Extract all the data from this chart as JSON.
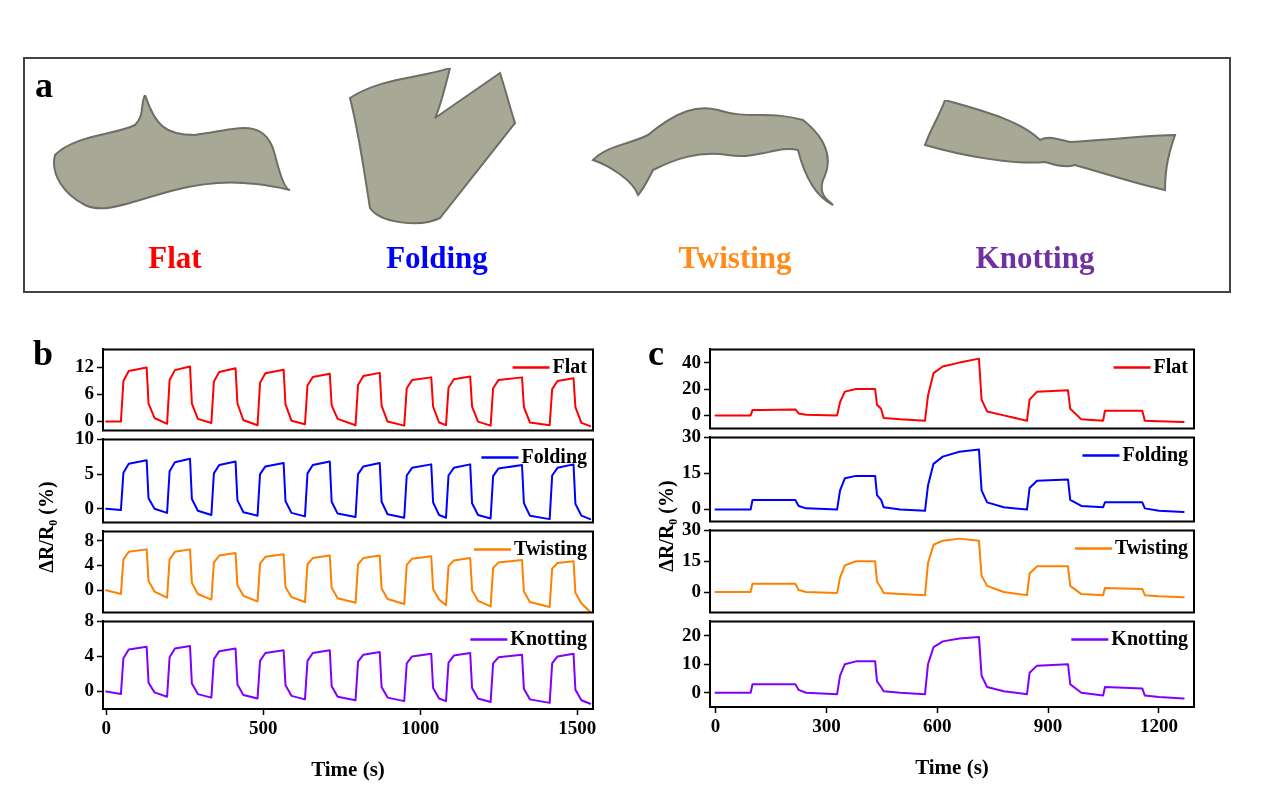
{
  "chart_data": [
    {
      "type": "other",
      "title": "a",
      "annotations": [
        "Flat",
        "Folding",
        "Twisting",
        "Knotting"
      ],
      "colors": [
        "#ff0000",
        "#0000ff",
        "#ff8c1a",
        "#7030a0"
      ]
    },
    {
      "type": "line",
      "title": "b",
      "ylabel": "ΔR/R₀ (%)",
      "legend": "top right",
      "tick_labels": "y",
      "xlim": [
        -10,
        1550
      ],
      "ylim": [
        -2,
        16
      ],
      "yticks": [
        0,
        6,
        12
      ],
      "x": [
        0,
        47,
        55,
        72,
        129,
        135,
        154,
        194,
        202,
        219,
        267,
        273,
        292,
        335,
        343,
        360,
        412,
        418,
        437,
        482,
        490,
        507,
        565,
        571,
        590,
        633,
        641,
        658,
        712,
        718,
        737,
        794,
        802,
        819,
        871,
        877,
        896,
        949,
        957,
        974,
        1035,
        1041,
        1060,
        1082,
        1090,
        1107,
        1159,
        1165,
        1184,
        1224,
        1232,
        1249,
        1324,
        1330,
        1349,
        1412,
        1420,
        1437,
        1488,
        1494,
        1513,
        1541
      ],
      "series": [
        {
          "name": "Flat",
          "color": "#ff0000",
          "values": [
            0,
            0,
            9,
            11.2,
            12,
            4,
            0.8,
            -0.5,
            9.2,
            11.4,
            12.2,
            4,
            0.6,
            -0.3,
            8.9,
            11,
            11.8,
            4,
            0.3,
            -0.8,
            8.6,
            10.7,
            11.5,
            3.8,
            0.2,
            -0.6,
            8,
            9.9,
            10.6,
            3.6,
            0.6,
            -0.8,
            8.1,
            10.1,
            10.8,
            3.5,
            0,
            -0.9,
            7.4,
            9.2,
            9.8,
            3.3,
            -0.2,
            -0.8,
            7.5,
            9.4,
            10,
            3.3,
            0,
            -0.9,
            7.4,
            9.2,
            9.8,
            3.2,
            -0.2,
            -0.8,
            7.2,
            9,
            9.6,
            3.2,
            -0.3,
            -1
          ]
        }
      ]
    },
    {
      "type": "line",
      "legend": "top right",
      "tick_labels": "y",
      "xlim": [
        -10,
        1550
      ],
      "ylim": [
        -2,
        10
      ],
      "yticks": [
        0,
        5,
        10
      ],
      "x": [
        0,
        47,
        55,
        72,
        129,
        135,
        154,
        194,
        202,
        219,
        267,
        273,
        292,
        335,
        343,
        360,
        412,
        418,
        437,
        482,
        490,
        507,
        565,
        571,
        590,
        633,
        641,
        658,
        712,
        718,
        737,
        794,
        802,
        819,
        871,
        877,
        896,
        949,
        957,
        974,
        1035,
        1041,
        1060,
        1082,
        1090,
        1107,
        1159,
        1165,
        1184,
        1224,
        1232,
        1249,
        1324,
        1330,
        1349,
        1412,
        1420,
        1437,
        1488,
        1494,
        1513,
        1541
      ],
      "series": [
        {
          "name": "Folding",
          "color": "#0000ff",
          "values": [
            0,
            -0.2,
            5.2,
            6.5,
            7,
            1.5,
            0,
            -0.6,
            5.4,
            6.7,
            7.2,
            1.4,
            -0.3,
            -0.9,
            5.1,
            6.3,
            6.8,
            1.2,
            -0.5,
            -1,
            5,
            6.1,
            6.6,
            1.1,
            -0.6,
            -1.1,
            5.1,
            6.3,
            6.8,
            1,
            -0.7,
            -1.2,
            5,
            6.1,
            6.6,
            1,
            -0.8,
            -1.3,
            4.8,
            5.9,
            6.4,
            0.9,
            -0.9,
            -1.3,
            4.8,
            5.9,
            6.4,
            0.8,
            -0.9,
            -1.4,
            4.7,
            5.8,
            6.3,
            0.8,
            -1,
            -1.5,
            4.8,
            5.9,
            6.4,
            0.7,
            -1,
            -1.5
          ]
        }
      ]
    },
    {
      "type": "line",
      "legend": "top right",
      "tick_labels": "y",
      "xlim": [
        -10,
        1550
      ],
      "ylim": [
        -3.6,
        9.5
      ],
      "yticks": [
        0,
        4,
        8
      ],
      "x": [
        0,
        47,
        55,
        72,
        129,
        135,
        154,
        194,
        202,
        219,
        267,
        273,
        292,
        335,
        343,
        360,
        412,
        418,
        437,
        482,
        490,
        507,
        565,
        571,
        590,
        633,
        641,
        658,
        712,
        718,
        737,
        794,
        802,
        819,
        871,
        877,
        896,
        949,
        957,
        974,
        1035,
        1041,
        1060,
        1082,
        1090,
        1107,
        1159,
        1165,
        1184,
        1224,
        1232,
        1249,
        1324,
        1330,
        1349,
        1412,
        1420,
        1437,
        1488,
        1494,
        1513,
        1541
      ],
      "series": [
        {
          "name": "Twisting",
          "color": "#ff8000",
          "values": [
            0,
            -0.6,
            5,
            6.2,
            6.6,
            1.5,
            -0.2,
            -1.2,
            5,
            6.2,
            6.6,
            1.2,
            -0.6,
            -1.5,
            4.5,
            5.6,
            6,
            0.8,
            -0.9,
            -1.8,
            4.3,
            5.4,
            5.8,
            0.5,
            -1.1,
            -1.9,
            4.2,
            5.2,
            5.6,
            0.4,
            -1.3,
            -2,
            4.2,
            5.2,
            5.6,
            0.3,
            -1.4,
            -2.2,
            4.1,
            5.1,
            5.5,
            0.2,
            -1.5,
            -2.4,
            3.9,
            4.8,
            5.2,
            0,
            -1.7,
            -2.6,
            3.6,
            4.5,
            4.9,
            -0.2,
            -1.9,
            -2.7,
            3.5,
            4.4,
            4.7,
            -0.4,
            -2.1,
            -3.5
          ]
        }
      ]
    },
    {
      "type": "line",
      "xlabel": "Time (s)",
      "legend": "top right",
      "xlim": [
        -10,
        1550
      ],
      "xticks": [
        0,
        500,
        1000,
        1500
      ],
      "ylim": [
        -2,
        8
      ],
      "yticks": [
        0,
        4,
        8
      ],
      "x": [
        0,
        47,
        55,
        72,
        129,
        135,
        154,
        194,
        202,
        219,
        267,
        273,
        292,
        335,
        343,
        360,
        412,
        418,
        437,
        482,
        490,
        507,
        565,
        571,
        590,
        633,
        641,
        658,
        712,
        718,
        737,
        794,
        802,
        819,
        871,
        877,
        896,
        949,
        957,
        974,
        1035,
        1041,
        1060,
        1082,
        1090,
        1107,
        1159,
        1165,
        1184,
        1224,
        1232,
        1249,
        1324,
        1330,
        1349,
        1412,
        1420,
        1437,
        1488,
        1494,
        1513,
        1541
      ],
      "series": [
        {
          "name": "Knotting",
          "color": "#8000ff",
          "values": [
            0,
            -0.3,
            3.8,
            4.8,
            5.1,
            1,
            -0.1,
            -0.6,
            3.9,
            4.9,
            5.2,
            0.9,
            -0.3,
            -0.7,
            3.7,
            4.6,
            4.9,
            0.8,
            -0.4,
            -0.8,
            3.5,
            4.4,
            4.7,
            0.7,
            -0.5,
            -0.9,
            3.5,
            4.4,
            4.7,
            0.6,
            -0.6,
            -1,
            3.4,
            4.2,
            4.5,
            0.5,
            -0.7,
            -1.1,
            3.2,
            4,
            4.3,
            0.4,
            -0.8,
            -1.1,
            3.3,
            4.1,
            4.4,
            0.4,
            -0.8,
            -1.2,
            3.2,
            3.9,
            4.2,
            0.3,
            -0.9,
            -1.3,
            3.2,
            4,
            4.3,
            0.2,
            -1,
            -1.4
          ]
        }
      ]
    },
    {
      "type": "line",
      "title": "c",
      "ylabel": "ΔR/R₀ (%)",
      "legend": "top right",
      "tick_labels": "y",
      "xlim": [
        -15,
        1295
      ],
      "ylim": [
        -10,
        50
      ],
      "yticks": [
        0,
        20,
        40
      ],
      "x": [
        0,
        95,
        100,
        216,
        225,
        245,
        329,
        337,
        350,
        380,
        432,
        437,
        448,
        455,
        500,
        567,
        575,
        590,
        615,
        660,
        713,
        720,
        735,
        780,
        843,
        850,
        870,
        954,
        960,
        990,
        1049,
        1054,
        1155,
        1162,
        1200,
        1267
      ],
      "series": [
        {
          "name": "Flat",
          "color": "#ff0000",
          "values": [
            0,
            0,
            4,
            4.5,
            1.5,
            0.5,
            0,
            10,
            18,
            20,
            20,
            8,
            5,
            -2,
            -3,
            -4,
            15,
            32,
            37,
            40,
            43,
            12,
            3,
            0,
            -4,
            12,
            18,
            19,
            5,
            -3,
            -4,
            3.5,
            3.5,
            -4,
            -4.5,
            -5
          ]
        }
      ]
    },
    {
      "type": "line",
      "legend": "top right",
      "tick_labels": "y",
      "xlim": [
        -15,
        1295
      ],
      "ylim": [
        -5,
        30
      ],
      "yticks": [
        0,
        15,
        30
      ],
      "x": [
        0,
        95,
        100,
        216,
        225,
        245,
        329,
        337,
        350,
        380,
        432,
        437,
        448,
        455,
        500,
        567,
        575,
        590,
        615,
        660,
        713,
        720,
        735,
        780,
        843,
        850,
        870,
        954,
        960,
        990,
        1049,
        1054,
        1155,
        1162,
        1200,
        1267
      ],
      "series": [
        {
          "name": "Folding",
          "color": "#0000ff",
          "values": [
            0,
            0,
            4,
            4,
            1.5,
            0.5,
            0,
            8,
            13,
            14,
            14,
            6,
            4,
            1,
            0,
            -0.5,
            10,
            19,
            22,
            24,
            25,
            8,
            3,
            1,
            0,
            9,
            12,
            12.5,
            4,
            1.5,
            1,
            3,
            3,
            0.5,
            -0.5,
            -1
          ]
        }
      ]
    },
    {
      "type": "line",
      "legend": "top right",
      "tick_labels": "y",
      "xlim": [
        -15,
        1295
      ],
      "ylim": [
        -10,
        30
      ],
      "yticks": [
        0,
        15,
        30
      ],
      "x": [
        0,
        95,
        100,
        216,
        225,
        245,
        329,
        337,
        350,
        380,
        432,
        437,
        448,
        455,
        500,
        567,
        575,
        590,
        615,
        660,
        713,
        720,
        735,
        780,
        843,
        850,
        870,
        954,
        960,
        990,
        1049,
        1054,
        1155,
        1162,
        1200,
        1267
      ],
      "series": [
        {
          "name": "Twisting",
          "color": "#ff8000",
          "values": [
            0,
            0,
            4,
            4,
            1,
            0,
            -0.5,
            7,
            13,
            15,
            15,
            5,
            2,
            -0.5,
            -1,
            -1.5,
            14,
            23,
            25,
            26,
            25,
            8,
            3,
            0,
            -1.5,
            9,
            12.5,
            12.5,
            3,
            -1,
            -1.5,
            2,
            1.5,
            -1.5,
            -2,
            -2.5
          ]
        }
      ]
    },
    {
      "type": "line",
      "xlabel": "Time (s)",
      "legend": "top right",
      "xlim": [
        -15,
        1295
      ],
      "xticks": [
        0,
        300,
        600,
        900,
        1200
      ],
      "ylim": [
        -5,
        25
      ],
      "yticks": [
        0,
        10,
        20
      ],
      "x": [
        0,
        95,
        100,
        216,
        225,
        245,
        329,
        337,
        350,
        380,
        432,
        437,
        448,
        455,
        500,
        567,
        575,
        590,
        615,
        660,
        713,
        720,
        735,
        780,
        843,
        850,
        870,
        954,
        960,
        990,
        1049,
        1054,
        1155,
        1162,
        1200,
        1267
      ],
      "series": [
        {
          "name": "Knotting",
          "color": "#8000ff",
          "values": [
            0,
            0,
            3,
            3,
            1,
            0,
            -0.5,
            6,
            10,
            11,
            11,
            4,
            2,
            0.5,
            0,
            -0.5,
            10,
            16,
            18,
            19,
            19.5,
            6,
            2,
            0.5,
            -0.5,
            7,
            9.5,
            10,
            3,
            0,
            -1,
            2,
            1.5,
            -1,
            -1.5,
            -2
          ]
        }
      ]
    }
  ]
}
